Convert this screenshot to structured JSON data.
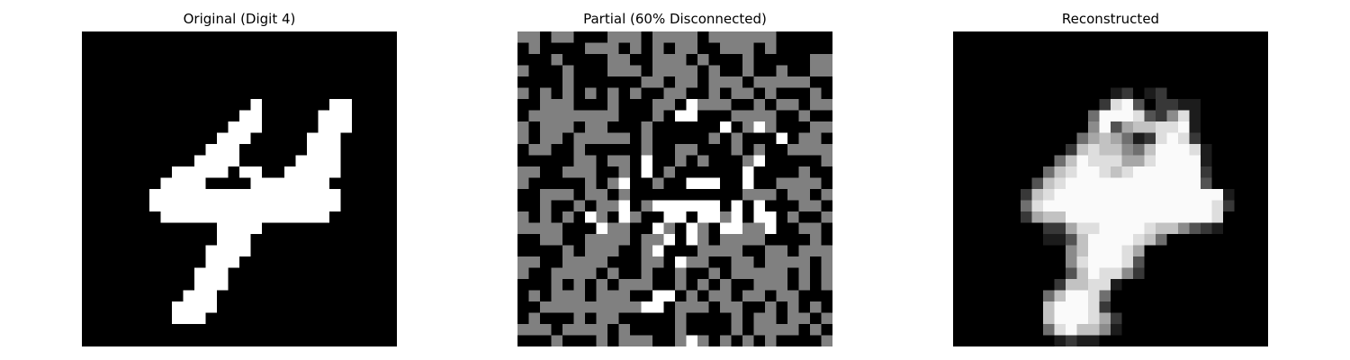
{
  "figure": {
    "panels": [
      {
        "title": "Original (Digit 4)",
        "name": "original-digit-image",
        "grid": "original"
      },
      {
        "title": "Partial (60% Disconnected)",
        "name": "partial-disconnected-image",
        "grid": "partial"
      },
      {
        "title": "Reconstructed",
        "name": "reconstructed-image",
        "grid": "reconstructed"
      }
    ]
  },
  "grids": {
    "grid_size": 28,
    "original": {
      "scale": "binary",
      "rows": [
        "............................",
        "............................",
        "............................",
        "............................",
        "............................",
        "............................",
        "...............#......##....",
        "..............##.....###....",
        ".............###.....###....",
        "............###.....###.....",
        "...........###......###.....",
        "..........####.....####.....",
        "........#####.##..#####.....",
        ".......####....#######......",
        "......#################.....",
        "......#################.....",
        ".......###############......",
        "............####............",
        "............###.............",
        "...........####.............",
        "...........###..............",
        "..........###...............",
        "..........###...............",
        ".........###................",
        "........####................",
        "........###.................",
        "............................",
        "............................"
      ]
    },
    "partial": {
      "scale": "legend: 0=black, 1=grey (disconnected), 2=white",
      "rows": [
        "1101100011101111011111100000",
        "0100001110101011001110100000",
        "0001000011001110100010000011",
        "1000100011101111010010010011",
        "0000100000011011011101111100",
        "1010101010100110010110100010",
        "0011100010001102111001011011",
        "0111111110001022000111100100",
        "1011101100010000002012100011",
        "1011011111010000010100020110",
        "0110010000010011000101001111",
        "0000011011020010100012000001",
        "1100111001020100000020000100",
        "1000001012001002220020011110",
        "0011101101000000000011101101",
        "0010010112012222220202000110",
        "1010102102100220221202201001",
        "1111000211002102102211200110",
        "0011001111011202101111000010",
        "0000101110012000111100110111",
        "1100111100011021100110111101",
        "1001111010010010010111110101",
        "0001010101110010101001110101",
        "0101110111002201011011011000",
        "0011111111122011101100101010",
        "0100010110000010000101101101",
        "1110111101000010000101111010",
        "0001000101110012101010100001"
      ]
    },
    "reconstructed": {
      "scale": "brightness 0-9",
      "rows": [
        "............................",
        "............................",
        "............................",
        "............................",
        "............................",
        "..............12.12.........",
        ".............2893.2211......",
        "............4999832581......",
        "............5936778891......",
        "...........46764128982......",
        "..........2787754799981.....",
        ".........47988866899991.....",
        "........478998789999992.....",
        ".......3789999999999993.....",
        "......2789999999999999991...",
        "......4899999999999999982...",
        "......267799999999999998....",
        "........2268899998775321....",
        "........11379999874.........",
        "..........5799986...........",
        "..........5899983...........",
        "..........3798852...........",
        ".........277881.............",
        "........479984..............",
        "........799982..............",
        "........7999862.............",
        "........4897751.............",
        ".........1211..............."
      ]
    }
  }
}
